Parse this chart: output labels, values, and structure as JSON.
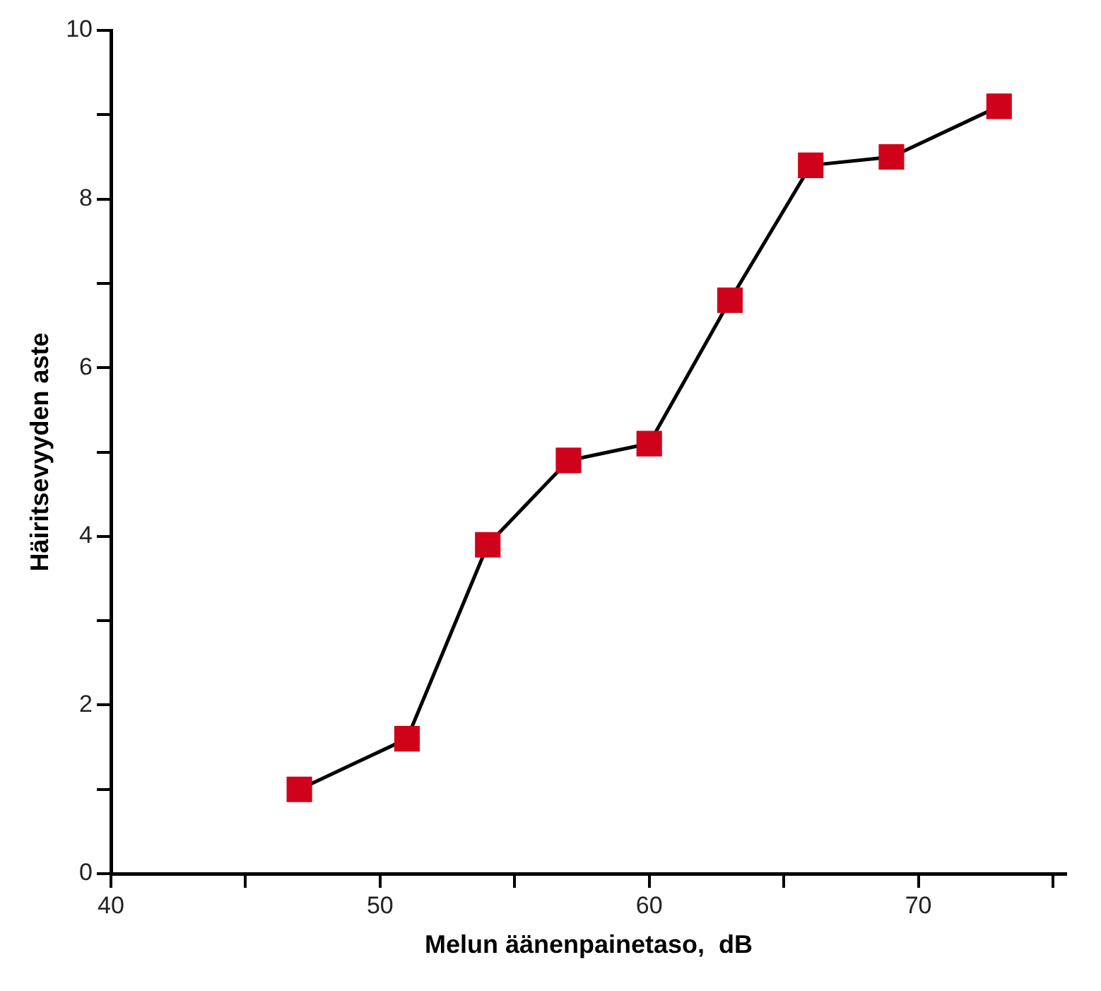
{
  "chart_data": {
    "type": "line",
    "xlabel": "Melun äänenpainetaso,  dB",
    "ylabel": "Häiritsevyyden aste",
    "x": [
      47,
      51,
      54,
      57,
      60,
      63,
      66,
      69,
      73
    ],
    "series": [
      {
        "color": "#d0021b",
        "values": [
          1.0,
          1.6,
          3.9,
          4.9,
          5.1,
          6.8,
          8.4,
          8.5,
          9.1
        ]
      }
    ],
    "xlim": [
      40,
      75.5
    ],
    "xticks": [
      40,
      {
        "value": 45,
        "label": null
      },
      50,
      {
        "value": 55,
        "label": null
      },
      60,
      {
        "value": 65,
        "label": null
      },
      70,
      {
        "value": 75,
        "label": null
      }
    ],
    "ylim": [
      0,
      10
    ],
    "yticks": [
      0,
      {
        "value": 1,
        "label": null
      },
      2,
      {
        "value": 3,
        "label": null
      },
      4,
      {
        "value": 5,
        "label": null
      },
      6,
      {
        "value": 7,
        "label": null
      },
      8,
      {
        "value": 9,
        "label": null
      },
      10
    ],
    "marker": "square",
    "line_style": "solid",
    "grid": false,
    "legend": false
  }
}
